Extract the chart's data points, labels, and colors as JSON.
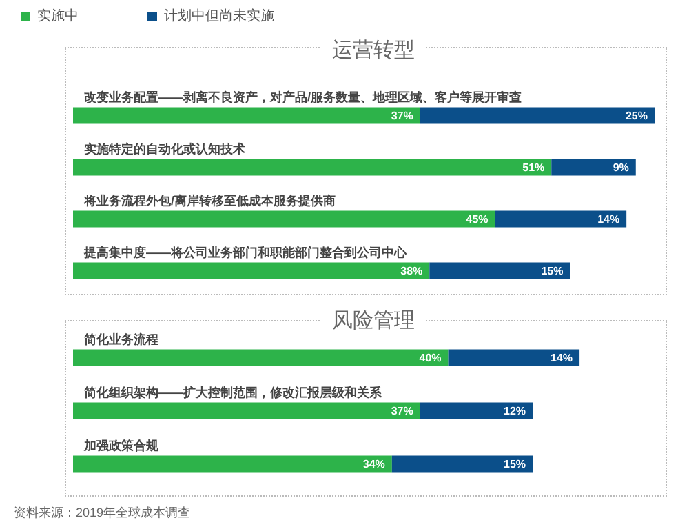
{
  "chart_data": [
    {
      "type": "bar",
      "orientation": "horizontal",
      "stacked": true,
      "title": "运营转型",
      "categories": [
        "改变业务配置——剥离不良资产，对产品/服务数量、地理区域、客户等展开审查",
        "实施特定的自动化或认知技术",
        "将业务流程外包/离岸转移至低成本服务提供商",
        "提高集中度——将公司业务部门和职能部门整合到公司中心"
      ],
      "series": [
        {
          "name": "实施中",
          "color": "#2db34a",
          "values": [
            37,
            51,
            45,
            38
          ],
          "value_labels": [
            "37%",
            "51%",
            "45%",
            "38%"
          ]
        },
        {
          "name": "计划中但尚未实施",
          "color": "#0b4f8a",
          "values": [
            25,
            9,
            14,
            15
          ],
          "value_labels": [
            "25%",
            "9%",
            "14%",
            "15%"
          ]
        }
      ],
      "tick_labels": false,
      "legend": "top left",
      "grid": false
    },
    {
      "type": "bar",
      "orientation": "horizontal",
      "stacked": true,
      "title": "风险管理",
      "categories": [
        "简化业务流程",
        "简化组织架构——扩大控制范围，修改汇报层级和关系",
        "加强政策合规"
      ],
      "series": [
        {
          "color": "#2db34a",
          "values": [
            40,
            37,
            34
          ],
          "value_labels": [
            "40%",
            "37%",
            "34%"
          ]
        },
        {
          "color": "#0b4f8a",
          "values": [
            14,
            12,
            15
          ],
          "value_labels": [
            "14%",
            "12%",
            "15%"
          ]
        }
      ],
      "tick_labels": false,
      "legend": false,
      "grid": false,
      "annotations": [
        "资料来源：2019年全球成本调查"
      ]
    }
  ]
}
